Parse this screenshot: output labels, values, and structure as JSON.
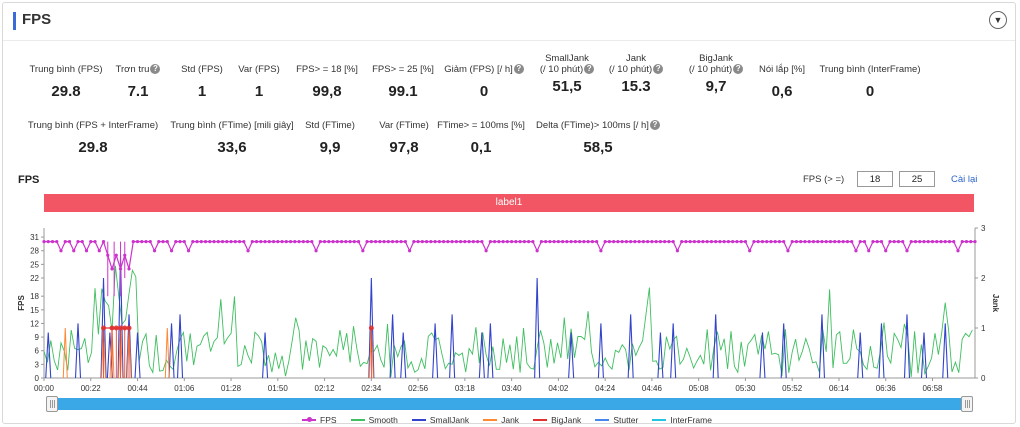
{
  "panel": {
    "title": "FPS",
    "collapse_icon": "chevron-down-icon"
  },
  "stats_row1": [
    {
      "label": "Trung bình (FPS)",
      "value": "29.8",
      "help": false
    },
    {
      "label": "Trơn tru",
      "value": "7.1",
      "help": true
    },
    {
      "label": "Std (FPS)",
      "value": "1",
      "help": false
    },
    {
      "label": "Var (FPS)",
      "value": "1",
      "help": false
    },
    {
      "label": "FPS> = 18 [%]",
      "value": "99,8",
      "help": false
    },
    {
      "label": "FPS> = 25 [%]",
      "value": "99.1",
      "help": false
    },
    {
      "label": "Giảm (FPS) [/ h]",
      "value": "0",
      "help": true
    },
    {
      "label": "SmallJank",
      "label2": "(/ 10 phút)",
      "value": "51,5",
      "help": true
    },
    {
      "label": "Jank",
      "label2": "(/ 10 phút)",
      "value": "15.3",
      "help": true
    },
    {
      "label": "BigJank",
      "label2": "(/ 10 phút)",
      "value": "9,7",
      "help": true
    },
    {
      "label": "Nói lắp [%]",
      "value": "0,6",
      "help": false
    },
    {
      "label": "Trung bình (InterFrame)",
      "value": "0",
      "help": false
    }
  ],
  "stats_row2": [
    {
      "label": "Trung bình (FPS + InterFrame)",
      "value": "29.8",
      "help": false
    },
    {
      "label": "Trung bình (FTime) [mili giây]",
      "value": "33,6",
      "help": false
    },
    {
      "label": "Std (FTime)",
      "value": "9,9",
      "help": false
    },
    {
      "label": "Var (FTime)",
      "value": "97,8",
      "help": false
    },
    {
      "label": "FTime> = 100ms [%]",
      "value": "0,1",
      "help": false
    },
    {
      "label": "Delta (FTime)> 100ms [/ h]",
      "value": "58,5",
      "help": true
    }
  ],
  "chart_header": {
    "title": "FPS",
    "filter_label": "FPS (> =)",
    "threshold_low": "18",
    "threshold_high": "25",
    "reset_label": "Cài lại"
  },
  "label_bar": "label1",
  "chart_data": {
    "type": "line",
    "xlabel": "",
    "ylabel": "FPS",
    "y2label": "Jank",
    "y_ticks": [
      0,
      3,
      6,
      9,
      12,
      15,
      18,
      22,
      25,
      28,
      31
    ],
    "y2_ticks": [
      0,
      1,
      2,
      3
    ],
    "x_ticks": [
      "00:00",
      "00:22",
      "00:44",
      "01:06",
      "01:28",
      "01:50",
      "02:12",
      "02:34",
      "02:56",
      "03:18",
      "03:40",
      "04:02",
      "04:24",
      "04:46",
      "05:08",
      "05:30",
      "05:52",
      "06:14",
      "06:36",
      "06:58"
    ],
    "x_range_seconds": [
      0,
      438
    ],
    "ylim": [
      0,
      33
    ],
    "y2lim": [
      0,
      3
    ],
    "series": [
      {
        "name": "FPS",
        "color": "#cc33cc",
        "baseline": 30,
        "dips_at_seconds": [
          8,
          14,
          20,
          26,
          32,
          34,
          36,
          40,
          52,
          60,
          68,
          96,
          128,
          150,
          172,
          208,
          232,
          262,
          298,
          332,
          350,
          382,
          388,
          396,
          406,
          430
        ],
        "dip_value": 28
      },
      {
        "name": "Smooth",
        "color": "#3fbf5f"
      },
      {
        "name": "SmallJank",
        "color": "#3344cc",
        "spikes_at_seconds": [
          2,
          16,
          28,
          31,
          36,
          40,
          44,
          60,
          64,
          104,
          154,
          164,
          169,
          184,
          192,
          206,
          210,
          232,
          248,
          262,
          276,
          290,
          296,
          316,
          338,
          348,
          366,
          384,
          394,
          406,
          414,
          424
        ]
      },
      {
        "name": "Jank",
        "color": "#ff8833",
        "spikes_at_seconds": [
          10,
          28,
          32,
          36,
          40,
          58,
          154
        ]
      },
      {
        "name": "BigJank",
        "color": "#e03030",
        "points_at_seconds": [
          28,
          32,
          34,
          36,
          38,
          40,
          154
        ],
        "value": 1
      },
      {
        "name": "Stutter",
        "color": "#4488ee"
      },
      {
        "name": "InterFrame",
        "color": "#22c4e0"
      }
    ]
  },
  "legend": [
    {
      "name": "FPS",
      "color": "#cc33cc",
      "marker": true
    },
    {
      "name": "Smooth",
      "color": "#3fbf5f",
      "marker": false
    },
    {
      "name": "SmallJank",
      "color": "#3344cc",
      "marker": false
    },
    {
      "name": "Jank",
      "color": "#ff8833",
      "marker": false
    },
    {
      "name": "BigJank",
      "color": "#e03030",
      "marker": false
    },
    {
      "name": "Stutter",
      "color": "#4488ee",
      "marker": false
    },
    {
      "name": "InterFrame",
      "color": "#22c4e0",
      "marker": false
    }
  ]
}
